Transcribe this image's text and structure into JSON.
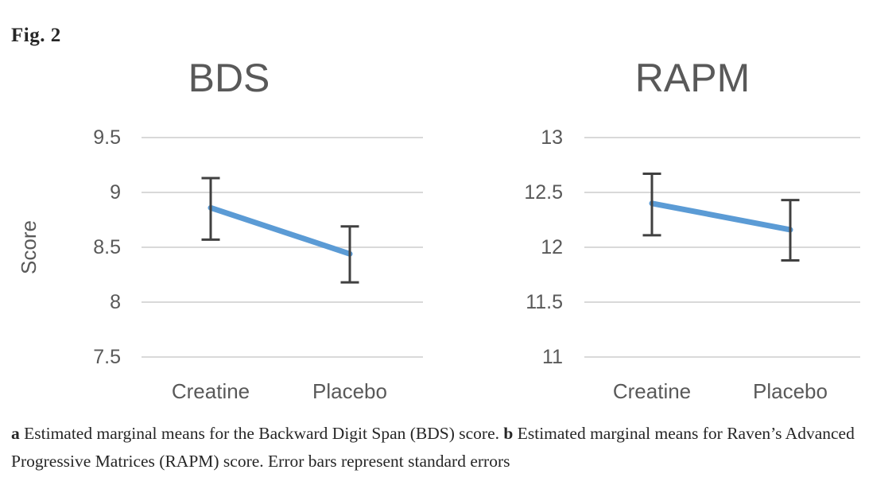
{
  "figure_label": "Fig. 2",
  "colors": {
    "line": "#5B9BD5",
    "error_bar": "#404040",
    "axis_text": "#595959",
    "title_text": "#595959",
    "gridline": "#D9D9D9",
    "caption_text": "#262626"
  },
  "chart_data": [
    {
      "type": "line",
      "title": "BDS",
      "ylabel": "Score",
      "xlabel": "",
      "categories": [
        "Creatine",
        "Placebo"
      ],
      "series": [
        {
          "name": "Estimated marginal mean",
          "values": [
            8.86,
            8.44
          ],
          "error_low": [
            8.57,
            8.18
          ],
          "error_high": [
            9.13,
            8.69
          ]
        }
      ],
      "yticks": [
        9.5,
        9,
        8.5,
        8,
        7.5
      ],
      "ylim": [
        7.5,
        9.5
      ],
      "grid": true,
      "legend": "none"
    },
    {
      "type": "line",
      "title": "RAPM",
      "ylabel": "",
      "xlabel": "",
      "categories": [
        "Creatine",
        "Placebo"
      ],
      "series": [
        {
          "name": "Estimated marginal mean",
          "values": [
            12.4,
            12.16
          ],
          "error_low": [
            12.11,
            11.88
          ],
          "error_high": [
            12.67,
            12.43
          ]
        }
      ],
      "yticks": [
        13,
        12.5,
        12,
        11.5,
        11
      ],
      "ylim": [
        11,
        13
      ],
      "grid": true,
      "legend": "none"
    }
  ],
  "caption": {
    "segments": [
      {
        "text": "a",
        "bold": true
      },
      {
        "text": " Estimated marginal means for the Backward Digit Span (BDS) score. ",
        "bold": false
      },
      {
        "text": "b",
        "bold": true
      },
      {
        "text": " Estimated marginal means for Raven’s Advanced Progressive Matrices (RAPM) score. Error bars represent standard errors",
        "bold": false
      }
    ]
  }
}
